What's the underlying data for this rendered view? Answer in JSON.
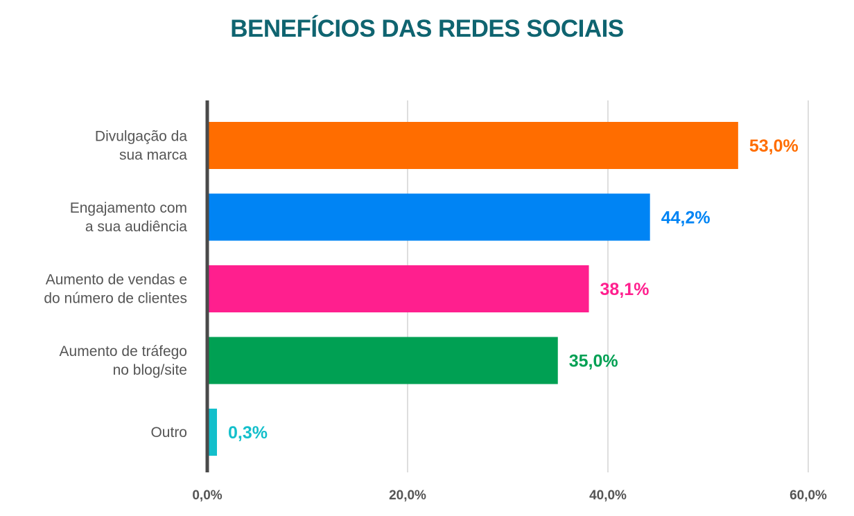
{
  "chart_data": {
    "type": "bar",
    "orientation": "horizontal",
    "title": "BENEFÍCIOS DAS REDES SOCIAIS",
    "categories": [
      [
        "Divulgação da",
        "sua marca"
      ],
      [
        "Engajamento com",
        "a sua audiência"
      ],
      [
        "Aumento de vendas e",
        "do número de clientes"
      ],
      [
        "Aumento de tráfego",
        "no blog/site"
      ],
      [
        "Outro"
      ]
    ],
    "values": [
      53.0,
      44.2,
      38.1,
      35.0,
      0.3
    ],
    "value_labels": [
      "53,0%",
      "44,2%",
      "38,1%",
      "35,0%",
      "0,3%"
    ],
    "colors": [
      "#ff6d00",
      "#0084f4",
      "#ff1f8e",
      "#00a053",
      "#13bfcb"
    ],
    "xlim": [
      0,
      60
    ],
    "xticks": [
      0,
      20,
      40,
      60
    ],
    "xtick_labels": [
      "0,0%",
      "20,0%",
      "40,0%",
      "60,0%"
    ],
    "grid": true,
    "title_color": "#0f6470",
    "label_color": "#555555"
  }
}
